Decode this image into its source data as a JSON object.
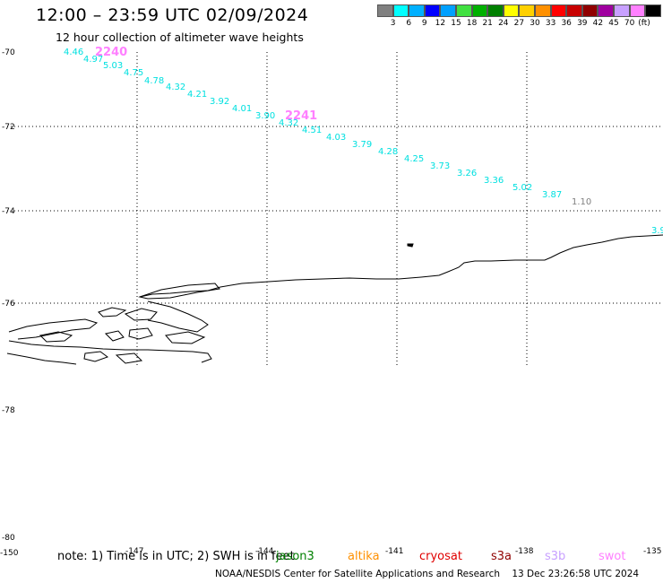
{
  "title": "12:00 – 23:59 UTC 02/09/2024",
  "subtitle": "12 hour collection of altimeter wave heights",
  "legend": {
    "unit": "(ft)",
    "colors": [
      "#808080",
      "#00ffff",
      "#00b0ff",
      "#0000ff",
      "#00a0ff",
      "#40e040",
      "#00b000",
      "#008000",
      "#ffff00",
      "#ffd000",
      "#ff9000",
      "#ff0000",
      "#c80000",
      "#900000",
      "#a000a0",
      "#c8a0ff",
      "#ff80ff",
      "#000000"
    ],
    "labels": [
      "3",
      "6",
      "9",
      "12",
      "15",
      "18",
      "21",
      "24",
      "27",
      "30",
      "33",
      "36",
      "39",
      "42",
      "45",
      "70"
    ]
  },
  "axes": {
    "lat_labels": [
      "-70",
      "-72",
      "-74",
      "-76",
      "-78",
      "-80"
    ],
    "lon_labels": [
      "-150",
      "-147",
      "-144",
      "-141",
      "-138",
      "-135"
    ]
  },
  "passes": [
    {
      "label": "2240",
      "color": "#ff80ff"
    },
    {
      "label": "2241",
      "color": "#ff80ff"
    }
  ],
  "wave_heights": [
    {
      "value": "4.46",
      "color": "#00e0e0"
    },
    {
      "value": "4.97",
      "color": "#00e0e0"
    },
    {
      "value": "5.03",
      "color": "#00e0e0"
    },
    {
      "value": "4.75",
      "color": "#00e0e0"
    },
    {
      "value": "4.78",
      "color": "#00e0e0"
    },
    {
      "value": "4.32",
      "color": "#00e0e0"
    },
    {
      "value": "4.21",
      "color": "#00e0e0"
    },
    {
      "value": "3.92",
      "color": "#00e0e0"
    },
    {
      "value": "4.01",
      "color": "#00e0e0"
    },
    {
      "value": "3.90",
      "color": "#00e0e0"
    },
    {
      "value": "4.32",
      "color": "#00e0e0"
    },
    {
      "value": "4.51",
      "color": "#00e0e0"
    },
    {
      "value": "4.03",
      "color": "#00e0e0"
    },
    {
      "value": "3.79",
      "color": "#00e0e0"
    },
    {
      "value": "4.28",
      "color": "#00e0e0"
    },
    {
      "value": "4.25",
      "color": "#00e0e0"
    },
    {
      "value": "3.73",
      "color": "#00e0e0"
    },
    {
      "value": "3.26",
      "color": "#00e0e0"
    },
    {
      "value": "3.36",
      "color": "#00e0e0"
    },
    {
      "value": "5.02",
      "color": "#00e0e0"
    },
    {
      "value": "3.87",
      "color": "#00e0e0"
    },
    {
      "value": "1.10",
      "color": "#808080"
    },
    {
      "value": "3.9",
      "color": "#00e0e0"
    }
  ],
  "note": "note:  1) Time is in UTC; 2) SWH is in feet",
  "missions": [
    {
      "name": "jason3",
      "color": "#008000"
    },
    {
      "name": "altika",
      "color": "#ff9000"
    },
    {
      "name": "cryosat",
      "color": "#e00000"
    },
    {
      "name": "s3a",
      "color": "#900000"
    },
    {
      "name": "s3b",
      "color": "#c8a0ff"
    },
    {
      "name": "swot",
      "color": "#ff80ff"
    }
  ],
  "footer": "NOAA/NESDIS Center for Satellite Applications and Research    13 Dec 23:26:58 UTC 2024"
}
